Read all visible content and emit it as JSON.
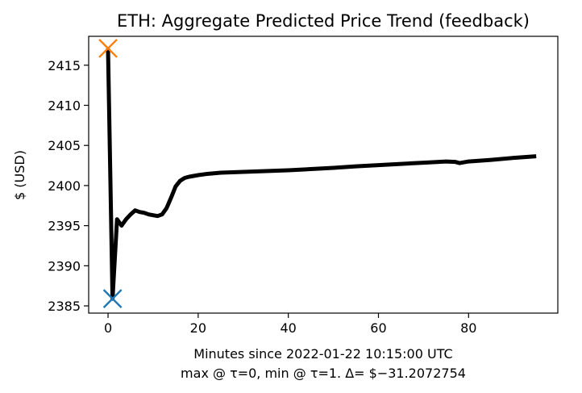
{
  "chart_data": {
    "type": "line",
    "title": "ETH: Aggregate Predicted Price Trend (feedback)",
    "xlabel": "Minutes since 2022-01-22 10:15:00 UTC",
    "xlabel_line2": "max @ τ=0, min @ τ=1. Δ= $−31.2072754",
    "ylabel": "$ (USD)",
    "xlim": [
      -4.3,
      99.8
    ],
    "ylim": [
      2384.1,
      2418.6
    ],
    "xticks": [
      0,
      20,
      40,
      60,
      80
    ],
    "xtick_labels": [
      "0",
      "20",
      "40",
      "60",
      "80"
    ],
    "yticks": [
      2385,
      2390,
      2395,
      2400,
      2405,
      2410,
      2415
    ],
    "ytick_labels": [
      "2385",
      "2390",
      "2395",
      "2400",
      "2405",
      "2410",
      "2415"
    ],
    "grid": false,
    "series": [
      {
        "color": "#000000",
        "x": [
          0,
          1,
          2,
          3,
          4,
          5,
          6,
          7,
          8,
          9,
          10,
          11,
          12,
          13,
          14,
          15,
          16,
          17,
          18,
          19,
          20,
          22,
          25,
          30,
          35,
          40,
          45,
          50,
          55,
          60,
          65,
          70,
          75,
          77,
          78,
          80,
          85,
          90,
          95
        ],
        "y": [
          2417.1,
          2385.9,
          2395.8,
          2395.0,
          2395.8,
          2396.4,
          2396.9,
          2396.7,
          2396.6,
          2396.4,
          2396.3,
          2396.2,
          2396.4,
          2397.2,
          2398.5,
          2399.9,
          2400.6,
          2400.95,
          2401.1,
          2401.2,
          2401.3,
          2401.45,
          2401.6,
          2401.7,
          2401.8,
          2401.9,
          2402.05,
          2402.2,
          2402.4,
          2402.55,
          2402.7,
          2402.85,
          2403.0,
          2402.95,
          2402.8,
          2403.0,
          2403.2,
          2403.45,
          2403.65
        ]
      }
    ],
    "markers": [
      {
        "x": 0,
        "y": 2417.1,
        "symbol": "x",
        "color": "#ff7f0e"
      },
      {
        "x": 1,
        "y": 2385.9,
        "symbol": "x",
        "color": "#1f77b4"
      }
    ]
  }
}
